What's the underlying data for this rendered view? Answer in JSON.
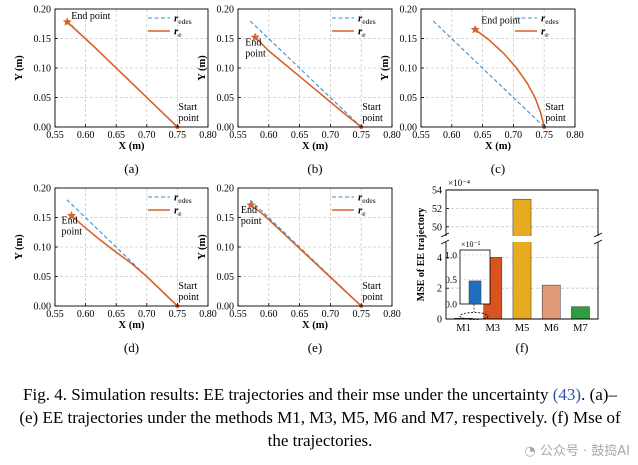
{
  "chart_data": [
    {
      "type": "line",
      "panel_label": "(a)",
      "xlabel": "X (m)",
      "ylabel": "Y (m)",
      "xlim": [
        0.55,
        0.8
      ],
      "ylim": [
        0,
        0.2
      ],
      "xticks": [
        "0.55",
        "0.60",
        "0.65",
        "0.70",
        "0.75",
        "0.80"
      ],
      "yticks": [
        "0.00",
        "0.05",
        "0.10",
        "0.15",
        "0.20"
      ],
      "grid": true,
      "legend": "top-right",
      "end_label": [
        "End point"
      ],
      "start_label": [
        "Start",
        "point"
      ],
      "series": [
        {
          "name": "r_edes",
          "style": "dashed",
          "color": "#3a8fd0",
          "x": [
            0.75,
            0.5695
          ],
          "y": [
            0.0,
            0.18
          ]
        },
        {
          "name": "r_e",
          "style": "solid",
          "color": "#d9622b",
          "x": [
            0.75,
            0.705,
            0.66,
            0.615,
            0.57
          ],
          "y": [
            0.0,
            0.045,
            0.09,
            0.135,
            0.178
          ]
        }
      ],
      "end_point": [
        0.57,
        0.178
      ],
      "start_point": [
        0.75,
        0.0
      ]
    },
    {
      "type": "line",
      "panel_label": "(b)",
      "xlabel": "X (m)",
      "ylabel": "Y (m)",
      "xlim": [
        0.55,
        0.8
      ],
      "ylim": [
        0,
        0.2
      ],
      "xticks": [
        "0.55",
        "0.60",
        "0.65",
        "0.70",
        "0.75",
        "0.80"
      ],
      "yticks": [
        "0.00",
        "0.05",
        "0.10",
        "0.15",
        "0.20"
      ],
      "grid": true,
      "legend": "top-right",
      "end_label": [
        "End",
        "point"
      ],
      "start_label": [
        "Start",
        "point"
      ],
      "series": [
        {
          "name": "r_edes",
          "style": "dashed",
          "color": "#3a8fd0",
          "x": [
            0.75,
            0.5695
          ],
          "y": [
            0.0,
            0.18
          ]
        },
        {
          "name": "r_e",
          "style": "solid",
          "color": "#d9622b",
          "x": [
            0.75,
            0.72,
            0.69,
            0.66,
            0.63,
            0.6,
            0.578
          ],
          "y": [
            0.0,
            0.025,
            0.051,
            0.077,
            0.103,
            0.129,
            0.152
          ]
        }
      ],
      "end_point": [
        0.578,
        0.152
      ],
      "start_point": [
        0.75,
        0.0
      ]
    },
    {
      "type": "line",
      "panel_label": "(c)",
      "xlabel": "X (m)",
      "ylabel": "Y (m)",
      "xlim": [
        0.55,
        0.8
      ],
      "ylim": [
        0,
        0.2
      ],
      "xticks": [
        "0.55",
        "0.60",
        "0.65",
        "0.70",
        "0.75",
        "0.80"
      ],
      "yticks": [
        "0.00",
        "0.05",
        "0.10",
        "0.15",
        "0.20"
      ],
      "grid": true,
      "legend": "top-right",
      "end_label": [
        "End point"
      ],
      "start_label": [
        "Start",
        "point"
      ],
      "series": [
        {
          "name": "r_edes",
          "style": "dashed",
          "color": "#3a8fd0",
          "x": [
            0.75,
            0.5695
          ],
          "y": [
            0.0,
            0.18
          ]
        },
        {
          "name": "r_e",
          "style": "solid",
          "color": "#d9622b",
          "x": [
            0.75,
            0.744,
            0.735,
            0.722,
            0.705,
            0.684,
            0.66,
            0.638
          ],
          "y": [
            0.0,
            0.025,
            0.05,
            0.075,
            0.1,
            0.125,
            0.148,
            0.165
          ]
        }
      ],
      "end_point": [
        0.638,
        0.165
      ],
      "start_point": [
        0.75,
        0.0
      ]
    },
    {
      "type": "line",
      "panel_label": "(d)",
      "xlabel": "X (m)",
      "ylabel": "Y (m)",
      "xlim": [
        0.55,
        0.8
      ],
      "ylim": [
        0,
        0.2
      ],
      "xticks": [
        "0.55",
        "0.60",
        "0.65",
        "0.70",
        "0.75",
        "0.80"
      ],
      "yticks": [
        "0.00",
        "0.05",
        "0.10",
        "0.15",
        "0.20"
      ],
      "grid": true,
      "legend": "top-right",
      "end_label": [
        "End",
        "point"
      ],
      "start_label": [
        "Start",
        "point"
      ],
      "series": [
        {
          "name": "r_edes",
          "style": "dashed",
          "color": "#3a8fd0",
          "x": [
            0.75,
            0.5695
          ],
          "y": [
            0.0,
            0.18
          ]
        },
        {
          "name": "r_e",
          "style": "solid",
          "color": "#d9622b",
          "x": [
            0.75,
            0.725,
            0.7,
            0.675,
            0.645,
            0.62,
            0.598,
            0.577
          ],
          "y": [
            0.0,
            0.025,
            0.05,
            0.072,
            0.095,
            0.115,
            0.134,
            0.153
          ]
        }
      ],
      "end_point": [
        0.577,
        0.153
      ],
      "start_point": [
        0.75,
        0.0
      ]
    },
    {
      "type": "line",
      "panel_label": "(e)",
      "xlabel": "X (m)",
      "ylabel": "Y (m)",
      "xlim": [
        0.55,
        0.8
      ],
      "ylim": [
        0,
        0.2
      ],
      "xticks": [
        "0.55",
        "0.60",
        "0.65",
        "0.70",
        "0.75",
        "0.80"
      ],
      "yticks": [
        "0.00",
        "0.05",
        "0.10",
        "0.15",
        "0.20"
      ],
      "grid": true,
      "legend": "top-right",
      "end_label": [
        "End",
        "point"
      ],
      "start_label": [
        "Start",
        "point"
      ],
      "series": [
        {
          "name": "r_edes",
          "style": "dashed",
          "color": "#3a8fd0",
          "x": [
            0.75,
            0.5695
          ],
          "y": [
            0.0,
            0.18
          ]
        },
        {
          "name": "r_e",
          "style": "solid",
          "color": "#d9622b",
          "x": [
            0.75,
            0.71,
            0.67,
            0.63,
            0.59,
            0.571
          ],
          "y": [
            0.0,
            0.039,
            0.078,
            0.117,
            0.156,
            0.171
          ]
        }
      ],
      "end_point": [
        0.571,
        0.171
      ],
      "start_point": [
        0.75,
        0.0
      ]
    },
    {
      "type": "bar",
      "panel_label": "(f)",
      "ylabel": "MSE of EE trajectory",
      "exponent": "×10⁻⁴",
      "categories": [
        "M1",
        "M3",
        "M5",
        "M6",
        "M7"
      ],
      "values": [
        0.05,
        4.0,
        53,
        2.2,
        0.8
      ],
      "colors": [
        "#1f6fbf",
        "#d9531e",
        "#e8aa1f",
        "#e09a77",
        "#2e9e3e"
      ],
      "yticks": [
        "0",
        "2",
        "4",
        "50",
        "52",
        "54"
      ],
      "ylim_lower": [
        0,
        5
      ],
      "ylim_upper": [
        49,
        54
      ],
      "axis_break": true,
      "inset": {
        "exponent": "×10⁻⁵",
        "yticks": [
          "0.0",
          "0.5",
          "1.0"
        ],
        "ylim": [
          0,
          1.1
        ],
        "category": "M1",
        "value": 0.47
      }
    }
  ],
  "legend_labels": {
    "desired": "edes",
    "actual": "e"
  },
  "caption": {
    "part1": "Fig. 4.    Simulation results: EE trajectories and their mse under the uncertainty ",
    "ref": "(43)",
    "part2": ". (a)–(e) EE trajectories under the methods M1, M3, M5, M6 and M7, respectively. (f) Mse of the trajectories."
  },
  "watermark": "公众号 · 鼓捣AI"
}
